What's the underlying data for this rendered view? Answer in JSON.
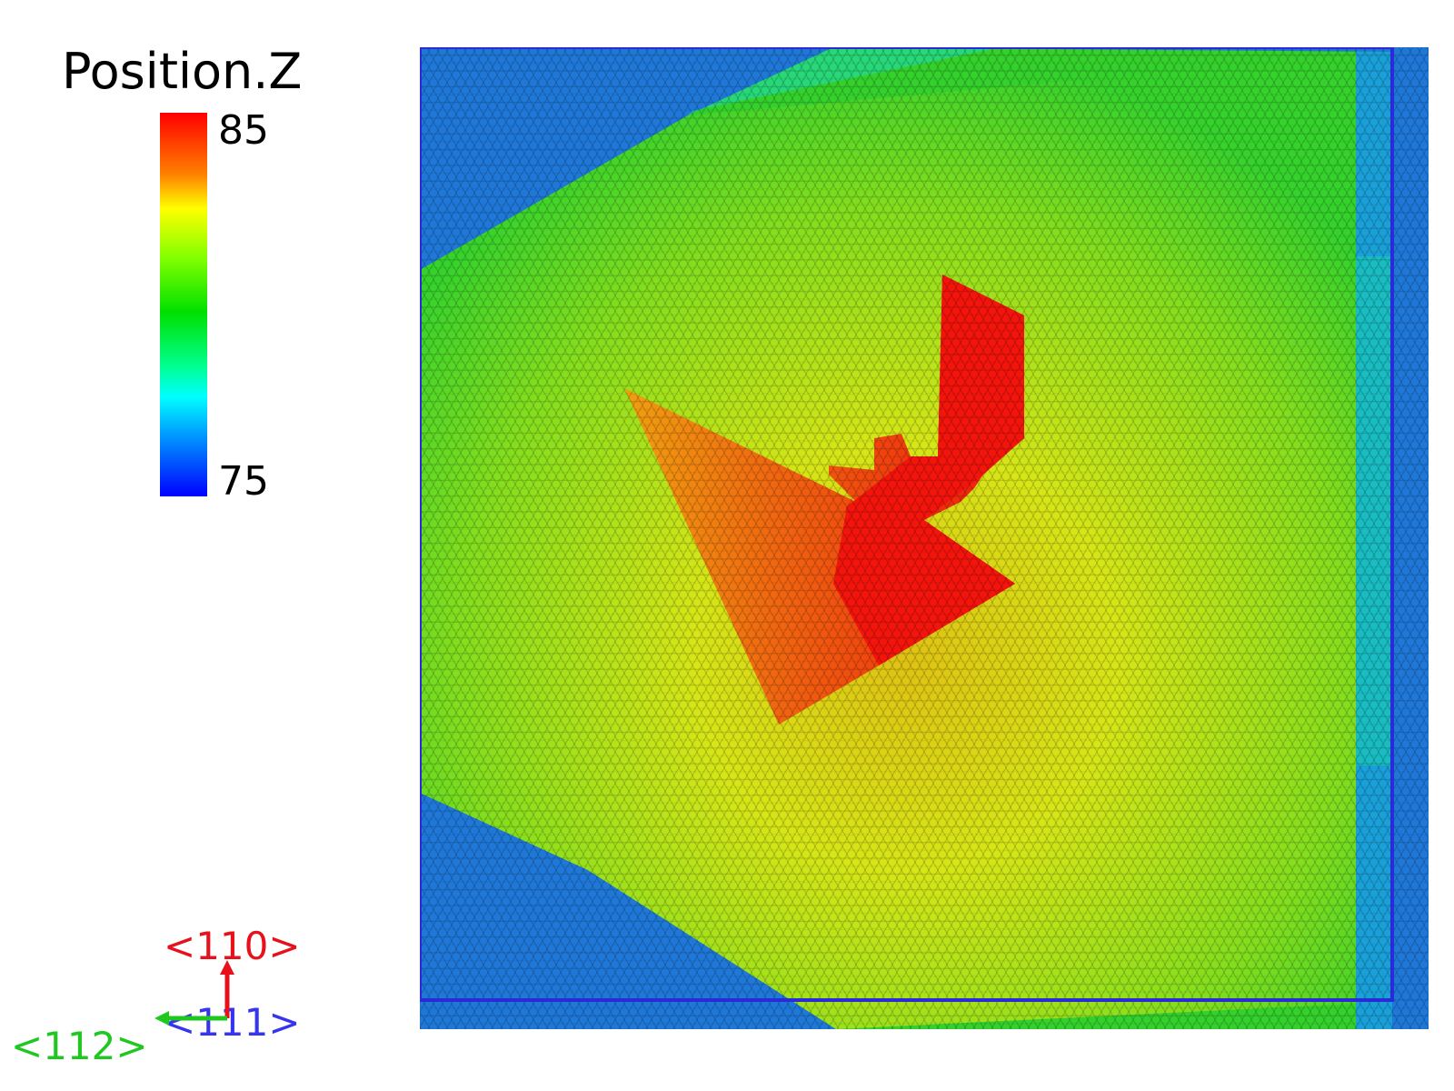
{
  "colorbar": {
    "title": "Position.Z",
    "max_label": "85",
    "min_label": "75",
    "colors": [
      "#ff0000",
      "#ff8000",
      "#ffff00",
      "#80ff00",
      "#00e000",
      "#00ff90",
      "#00ffff",
      "#0090ff",
      "#0000ff"
    ]
  },
  "axes": {
    "y_label": "<110>",
    "z_label": "<111>",
    "x_label": "<112>",
    "y_color": "#e8101a",
    "z_color": "#3535f0",
    "x_color": "#1ec81e"
  },
  "atom_map": {
    "lattice": "hexagonal close-packed atom layer",
    "colors": {
      "blue": "#1f74d6",
      "cyan": "#18d9a8",
      "green": "#2fd12a",
      "lime": "#8ee01c",
      "yellow": "#eeea12",
      "orange": "#f09010",
      "red": "#f21a0c",
      "edge": "#2a2ad8"
    }
  }
}
